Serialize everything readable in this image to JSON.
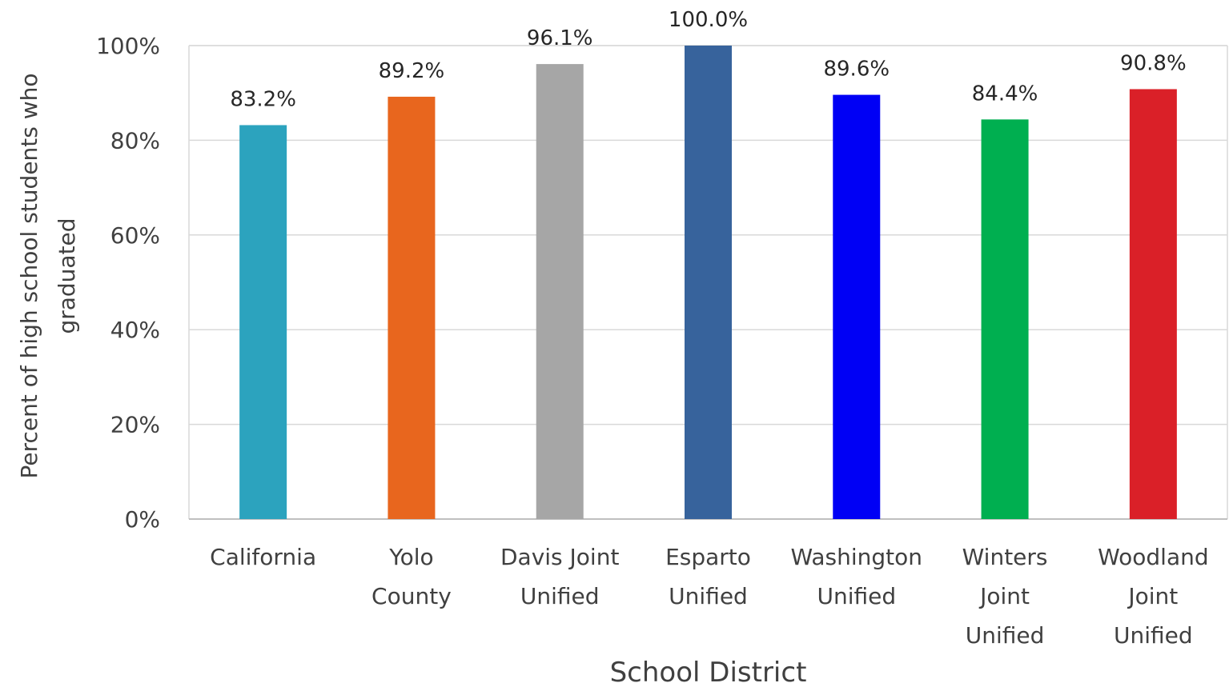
{
  "chart_data": {
    "type": "bar",
    "title": "",
    "xlabel": "School District",
    "ylabel": "Percent of high school students who graduated",
    "ylabel_lines": [
      "Percent of high school students who",
      "graduated"
    ],
    "categories": [
      "California",
      "Yolo County",
      "Davis Joint Unified",
      "Esparto Unified",
      "Washington Unified",
      "Winters Joint Unified",
      "Woodland Joint Unified"
    ],
    "category_lines": [
      [
        "California"
      ],
      [
        "Yolo",
        "County"
      ],
      [
        "Davis Joint",
        "Unified"
      ],
      [
        "Esparto",
        "Unified"
      ],
      [
        "Washington",
        "Unified"
      ],
      [
        "Winters",
        "Joint",
        "Unified"
      ],
      [
        "Woodland",
        "Joint",
        "Unified"
      ]
    ],
    "values": [
      83.2,
      89.2,
      96.1,
      100.0,
      89.6,
      84.4,
      90.8
    ],
    "value_labels": [
      "83.2%",
      "89.2%",
      "96.1%",
      "100.0%",
      "89.6%",
      "84.4%",
      "90.8%"
    ],
    "colors": [
      "#2ca3be",
      "#e8661e",
      "#a6a6a6",
      "#37639c",
      "#0000f5",
      "#00af50",
      "#da2028"
    ],
    "ylim": [
      0,
      100
    ],
    "yticks": [
      0,
      20,
      40,
      60,
      80,
      100
    ],
    "ytick_labels": [
      "0%",
      "20%",
      "40%",
      "60%",
      "80%",
      "100%"
    ],
    "grid": true,
    "legend": "none"
  }
}
